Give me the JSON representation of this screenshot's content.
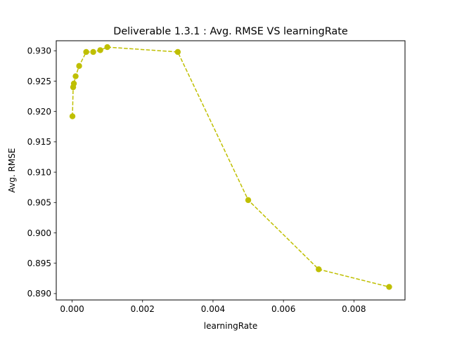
{
  "chart_data": {
    "type": "line",
    "title": "Deliverable 1.3.1 : Avg. RMSE VS learningRate",
    "xlabel": "learningRate",
    "ylabel": "Avg. RMSE",
    "xlim": [
      -0.00045,
      0.00945
    ],
    "ylim": [
      0.88895,
      0.93165
    ],
    "xticks": [
      0.0,
      0.002,
      0.004,
      0.006,
      0.008
    ],
    "xtick_labels": [
      "0.000",
      "0.002",
      "0.004",
      "0.006",
      "0.008"
    ],
    "yticks": [
      0.89,
      0.895,
      0.9,
      0.905,
      0.91,
      0.915,
      0.92,
      0.925,
      0.93
    ],
    "ytick_labels": [
      "0.890",
      "0.895",
      "0.900",
      "0.905",
      "0.910",
      "0.915",
      "0.920",
      "0.925",
      "0.930"
    ],
    "grid": false,
    "legend": "none",
    "series": [
      {
        "color": "#bfbf00",
        "line_style": "dashed",
        "marker": "circle",
        "x": [
          1e-05,
          3e-05,
          5e-05,
          0.0001,
          0.0002,
          0.0004,
          0.0006,
          0.0008,
          0.001,
          0.003,
          0.005,
          0.007,
          0.009
        ],
        "y": [
          0.9192,
          0.924,
          0.9246,
          0.9258,
          0.9275,
          0.9298,
          0.9298,
          0.9301,
          0.9306,
          0.9298,
          0.9054,
          0.894,
          0.8911
        ]
      }
    ]
  }
}
